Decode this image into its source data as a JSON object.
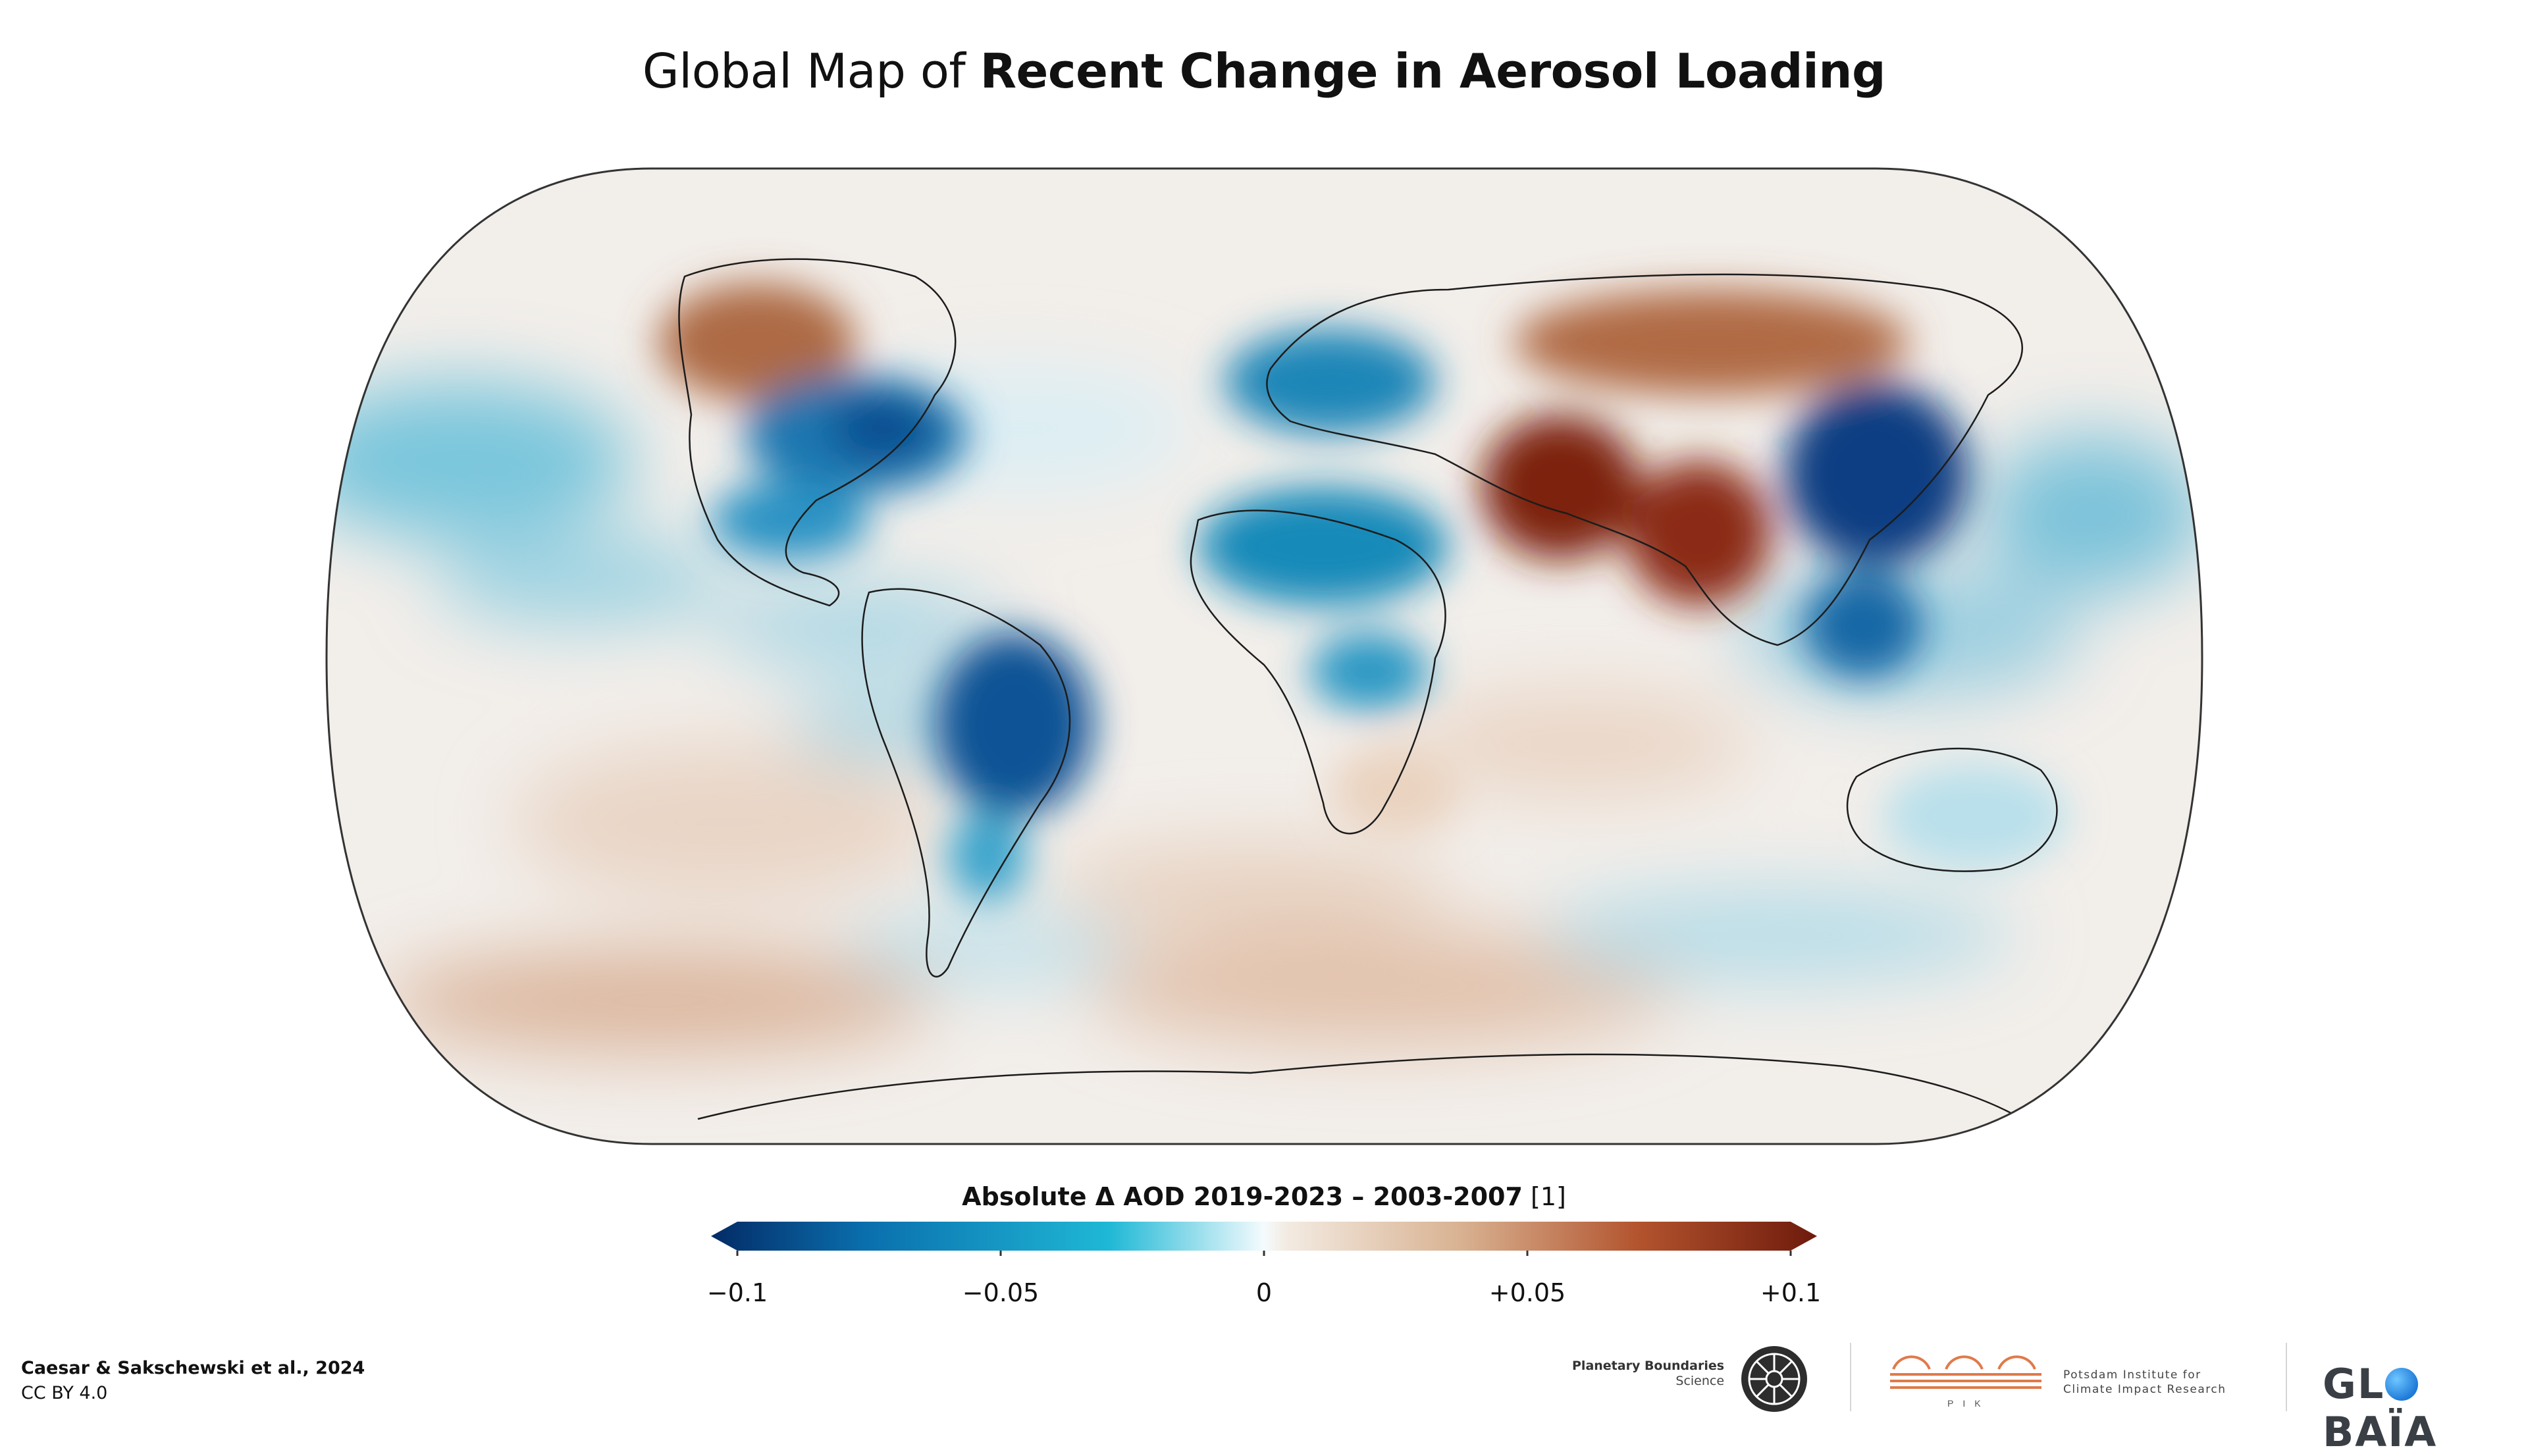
{
  "title": {
    "prefix": "Global Map of ",
    "emphasis": "Recent Change in Aerosol Loading"
  },
  "legend": {
    "title": "Absolute Δ AOD 2019-2023 – 2003-2007",
    "unit": "[1]",
    "range": [
      -0.1,
      0.1
    ],
    "ticks": [
      "−0.1",
      "−0.05",
      "0",
      "+0.05",
      "+0.1"
    ],
    "colors": [
      "#032b66",
      "#0a6fad",
      "#1fb8d6",
      "#f4fbfd",
      "#f3ebe2",
      "#d8b190",
      "#b2532d",
      "#6e1a0c"
    ]
  },
  "credits": {
    "authors": "Caesar & Sakschewski et al., 2024",
    "license": "CC BY 4.0"
  },
  "logos": {
    "pb_line1": "Planetary Boundaries",
    "pb_line2": "Science",
    "pik_line1": "Potsdam Institute for",
    "pik_line2": "Climate Impact Research",
    "pik_short": "PIK",
    "globaia_pre": "GL",
    "globaia_post": "BAÏA"
  },
  "map": {
    "projection": "equal-earth",
    "regions": [
      {
        "name": "East Asia",
        "value": -0.09,
        "color": "#0a3f86"
      },
      {
        "name": "Eastern United States",
        "value": -0.07,
        "color": "#0c5c9e"
      },
      {
        "name": "Central South America",
        "value": -0.08,
        "color": "#0b4a8f"
      },
      {
        "name": "Europe",
        "value": -0.05,
        "color": "#1f8bbd"
      },
      {
        "name": "Central Africa",
        "value": -0.06,
        "color": "#1a8fbf"
      },
      {
        "name": "Middle East",
        "value": 0.08,
        "color": "#8a2a12"
      },
      {
        "name": "India",
        "value": 0.08,
        "color": "#8f2d14"
      },
      {
        "name": "Northern Asia",
        "value": 0.06,
        "color": "#a8502a"
      },
      {
        "name": "Northwestern North America",
        "value": 0.06,
        "color": "#a75a35"
      }
    ]
  }
}
